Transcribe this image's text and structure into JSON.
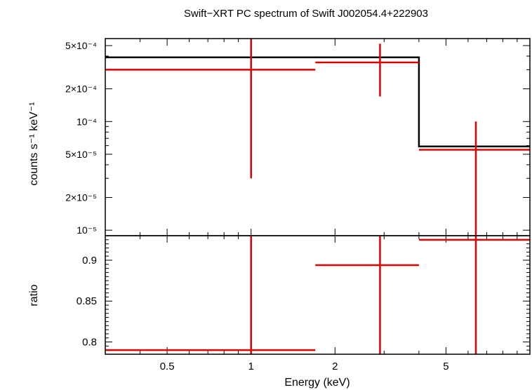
{
  "chart_data": [
    {
      "type": "scatter",
      "panel": "spectrum",
      "title": "Swift−XRT PC spectrum of Swift J002054.4+222903",
      "ylabel": "counts s⁻¹ keV⁻¹",
      "xlabel": "Energy (keV)",
      "xscale": "log",
      "yscale": "log",
      "xlim": [
        0.3,
        10
      ],
      "ylim": [
        8.9e-06,
        0.00058
      ],
      "y_ticks": [
        {
          "value": 0.0005,
          "label": "5×10⁻⁴"
        },
        {
          "value": 0.0002,
          "label": "2×10⁻⁴"
        },
        {
          "value": 0.0001,
          "label": "10⁻⁴"
        },
        {
          "value": 5e-05,
          "label": "5×10⁻⁵"
        },
        {
          "value": 2e-05,
          "label": "2×10⁻⁵"
        },
        {
          "value": 1e-05,
          "label": "10⁻⁵"
        }
      ],
      "series": [
        {
          "kind": "data",
          "color": "#e00000",
          "points": [
            {
              "x": 1.0,
              "xlo": 0.3,
              "xhi": 1.7,
              "y": 0.0003,
              "ylo": 3e-05,
              "yhi": 0.00058
            },
            {
              "x": 2.9,
              "xlo": 1.7,
              "xhi": 4.0,
              "y": 0.00035,
              "ylo": 0.00017,
              "yhi": 0.00052
            },
            {
              "x": 6.4,
              "xlo": 4.0,
              "xhi": 10.0,
              "y": 5.5e-05,
              "ylo": 8.9e-06,
              "yhi": 0.0001
            }
          ]
        },
        {
          "kind": "model",
          "color": "#000000",
          "steps": [
            {
              "xlo": 0.3,
              "xhi": 4.0,
              "y": 0.00039
            },
            {
              "xlo": 4.0,
              "xhi": 10.0,
              "y": 5.9e-05
            }
          ]
        }
      ]
    },
    {
      "type": "scatter",
      "panel": "ratio",
      "ylabel": "ratio",
      "xlabel": "Energy (keV)",
      "xscale": "log",
      "xlim": [
        0.3,
        10
      ],
      "ylim": [
        0.785,
        0.93
      ],
      "x_ticks": [
        {
          "value": 0.5,
          "label": "0.5"
        },
        {
          "value": 1,
          "label": "1"
        },
        {
          "value": 2,
          "label": "2"
        },
        {
          "value": 5,
          "label": "5"
        }
      ],
      "y_ticks": [
        {
          "value": 0.9,
          "label": "0.9"
        },
        {
          "value": 0.85,
          "label": "0.85"
        },
        {
          "value": 0.8,
          "label": "0.8"
        }
      ],
      "series": [
        {
          "kind": "ratio",
          "color": "#e00000",
          "points": [
            {
              "x": 1.0,
              "xlo": 0.3,
              "xhi": 1.7,
              "y": 0.79,
              "ylo": 0.785,
              "yhi": 0.93
            },
            {
              "x": 2.9,
              "xlo": 1.7,
              "xhi": 4.0,
              "y": 0.894,
              "ylo": 0.785,
              "yhi": 0.93
            },
            {
              "x": 6.4,
              "xlo": 4.0,
              "xhi": 10.0,
              "y": 0.925,
              "ylo": 0.785,
              "yhi": 0.93
            }
          ]
        }
      ]
    }
  ]
}
